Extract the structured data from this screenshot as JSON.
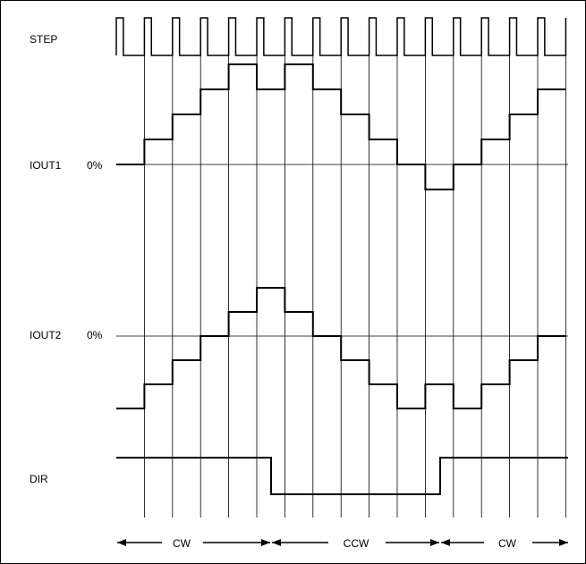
{
  "signals": {
    "step": "STEP",
    "iout1": "IOUT1",
    "iout2": "IOUT2",
    "dir": "DIR",
    "zero": "0%"
  },
  "directions": [
    {
      "label": "CW"
    },
    {
      "label": "CCW"
    },
    {
      "label": "CW"
    }
  ],
  "step_levels": {
    "iout1": [
      0,
      1,
      2,
      3,
      4,
      3,
      4,
      3,
      2,
      1,
      0,
      -1,
      0,
      1,
      2,
      3
    ],
    "iout2": [
      -3,
      -2,
      -1,
      0,
      1,
      2,
      1,
      0,
      -1,
      -2,
      -3,
      -2,
      -3,
      -2,
      -1,
      0
    ]
  },
  "dir_levels": [
    "high",
    "low",
    "high"
  ]
}
